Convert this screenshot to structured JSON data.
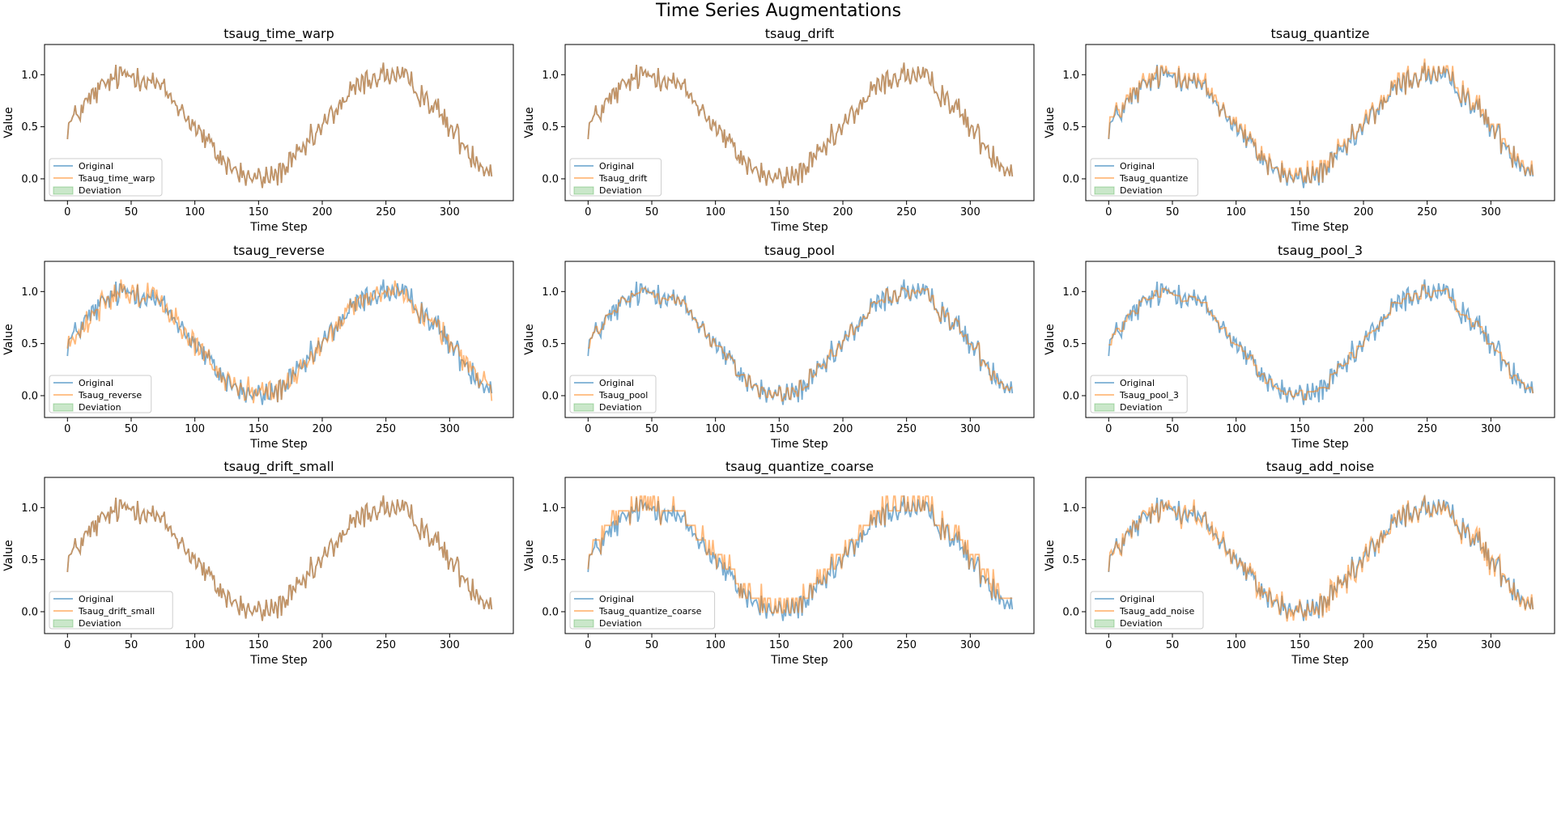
{
  "figure": {
    "title": "Time Series Augmentations"
  },
  "colors": {
    "original": "#1f77b4",
    "augmented": "#ff7f0e",
    "deviation": "#2ca02c",
    "axis": "#000000"
  },
  "chart_data": [
    {
      "type": "line",
      "title": "tsaug_time_warp",
      "xlabel": "Time Step",
      "ylabel": "Value",
      "xlim": [
        -18,
        350
      ],
      "ylim": [
        -0.21,
        1.29
      ],
      "xticks": [
        0,
        50,
        100,
        150,
        200,
        250,
        300
      ],
      "yticks": [
        0.0,
        0.5,
        1.0
      ],
      "grid": false,
      "legend_position": "lower-left",
      "legend": [
        "Original",
        "Tsaug_time_warp",
        "Deviation"
      ],
      "series": [
        {
          "name": "Original",
          "description": "noisy sine, n=334, range approx -0.2 to 1.2"
        },
        {
          "name": "Tsaug_time_warp",
          "description": "overlaps original"
        }
      ]
    },
    {
      "type": "line",
      "title": "tsaug_drift",
      "xlabel": "Time Step",
      "ylabel": "Value",
      "xlim": [
        -18,
        350
      ],
      "ylim": [
        -0.21,
        1.29
      ],
      "xticks": [
        0,
        50,
        100,
        150,
        200,
        250,
        300
      ],
      "yticks": [
        0.0,
        0.5,
        1.0
      ],
      "grid": false,
      "legend_position": "lower-left",
      "legend": [
        "Original",
        "Tsaug_drift",
        "Deviation"
      ],
      "series": [
        {
          "name": "Original",
          "description": "noisy sine, n=334"
        },
        {
          "name": "Tsaug_drift",
          "description": "overlaps original"
        }
      ]
    },
    {
      "type": "line",
      "title": "tsaug_quantize",
      "xlabel": "Time Step",
      "ylabel": "Value",
      "xlim": [
        -18,
        350
      ],
      "ylim": [
        -0.21,
        1.29
      ],
      "xticks": [
        0,
        50,
        100,
        150,
        200,
        250,
        300
      ],
      "yticks": [
        0.0,
        0.5,
        1.0
      ],
      "grid": false,
      "legend_position": "lower-left",
      "legend": [
        "Original",
        "Tsaug_quantize",
        "Deviation"
      ],
      "series": [
        {
          "name": "Original"
        },
        {
          "name": "Tsaug_quantize",
          "description": "quantized approximation of original"
        }
      ]
    },
    {
      "type": "line",
      "title": "tsaug_reverse",
      "xlabel": "Time Step",
      "ylabel": "Value",
      "xlim": [
        -18,
        350
      ],
      "ylim": [
        -0.21,
        1.29
      ],
      "xticks": [
        0,
        50,
        100,
        150,
        200,
        250,
        300
      ],
      "yticks": [
        0.0,
        0.5,
        1.0
      ],
      "grid": false,
      "legend_position": "lower-left",
      "legend": [
        "Original",
        "Tsaug_reverse",
        "Deviation"
      ],
      "series": [
        {
          "name": "Original"
        },
        {
          "name": "Tsaug_reverse",
          "description": "time-reversed original"
        }
      ]
    },
    {
      "type": "line",
      "title": "tsaug_pool",
      "xlabel": "Time Step",
      "ylabel": "Value",
      "xlim": [
        -18,
        350
      ],
      "ylim": [
        -0.21,
        1.29
      ],
      "xticks": [
        0,
        50,
        100,
        150,
        200,
        250,
        300
      ],
      "yticks": [
        0.0,
        0.5,
        1.0
      ],
      "grid": false,
      "legend_position": "lower-left",
      "legend": [
        "Original",
        "Tsaug_pool",
        "Deviation"
      ],
      "series": [
        {
          "name": "Original"
        },
        {
          "name": "Tsaug_pool",
          "description": "smoothed (pooled) original"
        }
      ]
    },
    {
      "type": "line",
      "title": "tsaug_pool_3",
      "xlabel": "Time Step",
      "ylabel": "Value",
      "xlim": [
        -18,
        350
      ],
      "ylim": [
        -0.21,
        1.29
      ],
      "xticks": [
        0,
        50,
        100,
        150,
        200,
        250,
        300
      ],
      "yticks": [
        0.0,
        0.5,
        1.0
      ],
      "grid": false,
      "legend_position": "lower-left",
      "legend": [
        "Original",
        "Tsaug_pool_3",
        "Deviation"
      ],
      "series": [
        {
          "name": "Original"
        },
        {
          "name": "Tsaug_pool_3",
          "description": "smoothed (pool size 3) original"
        }
      ]
    },
    {
      "type": "line",
      "title": "tsaug_drift_small",
      "xlabel": "Time Step",
      "ylabel": "Value",
      "xlim": [
        -18,
        350
      ],
      "ylim": [
        -0.21,
        1.29
      ],
      "xticks": [
        0,
        50,
        100,
        150,
        200,
        250,
        300
      ],
      "yticks": [
        0.0,
        0.5,
        1.0
      ],
      "grid": false,
      "legend_position": "lower-left",
      "legend": [
        "Original",
        "Tsaug_drift_small",
        "Deviation"
      ],
      "series": [
        {
          "name": "Original"
        },
        {
          "name": "Tsaug_drift_small",
          "description": "overlaps original"
        }
      ]
    },
    {
      "type": "line",
      "title": "tsaug_quantize_coarse",
      "xlabel": "Time Step",
      "ylabel": "Value",
      "xlim": [
        -18,
        350
      ],
      "ylim": [
        -0.21,
        1.29
      ],
      "xticks": [
        0,
        50,
        100,
        150,
        200,
        250,
        300
      ],
      "yticks": [
        0.0,
        0.5,
        1.0
      ],
      "grid": false,
      "legend_position": "lower-left",
      "legend": [
        "Original",
        "Tsaug_quantize_coarse",
        "Deviation"
      ],
      "series": [
        {
          "name": "Original"
        },
        {
          "name": "Tsaug_quantize_coarse",
          "description": "coarsely quantized original"
        }
      ]
    },
    {
      "type": "line",
      "title": "tsaug_add_noise",
      "xlabel": "Time Step",
      "ylabel": "Value",
      "xlim": [
        -18,
        350
      ],
      "ylim": [
        -0.21,
        1.29
      ],
      "xticks": [
        0,
        50,
        100,
        150,
        200,
        250,
        300
      ],
      "yticks": [
        0.0,
        0.5,
        1.0
      ],
      "grid": false,
      "legend_position": "lower-left",
      "legend": [
        "Original",
        "Tsaug_add_noise",
        "Deviation"
      ],
      "series": [
        {
          "name": "Original"
        },
        {
          "name": "Tsaug_add_noise",
          "description": "original with additive noise"
        }
      ]
    }
  ]
}
